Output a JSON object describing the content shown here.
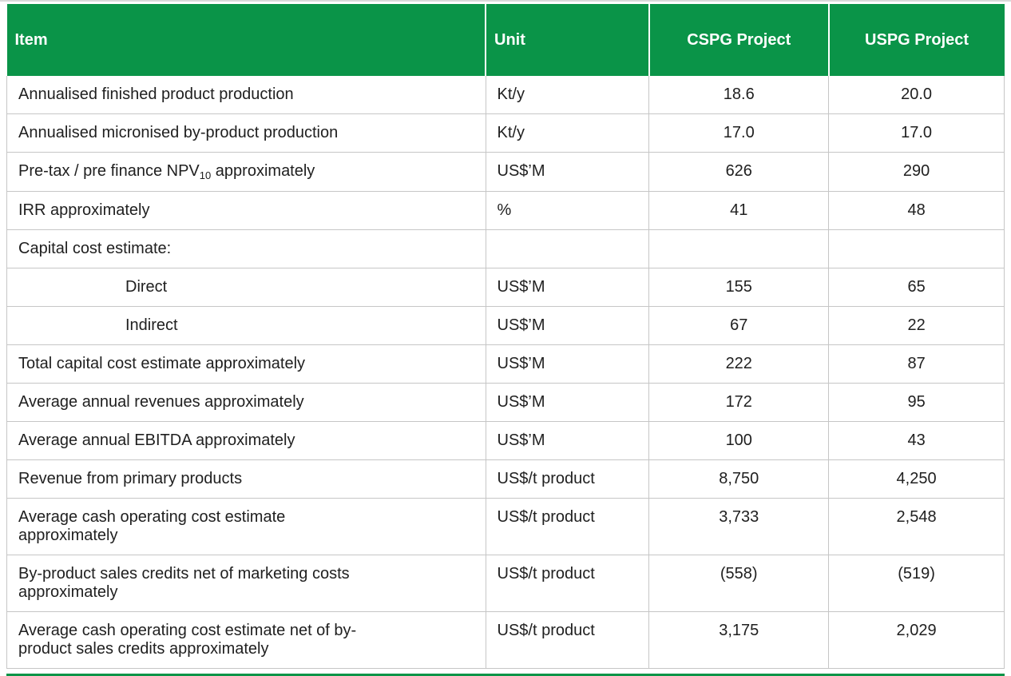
{
  "theme": {
    "header_bg": "#0a9448",
    "header_text": "#ffffff",
    "grid_line": "#c6c6c6",
    "body_text": "#202020"
  },
  "table": {
    "columns": [
      {
        "key": "item",
        "label": "Item"
      },
      {
        "key": "unit",
        "label": "Unit"
      },
      {
        "key": "cspg",
        "label": "CSPG Project"
      },
      {
        "key": "uspg",
        "label": "USPG Project"
      }
    ],
    "rows": [
      {
        "item": "Annualised finished product production",
        "unit": "Kt/y",
        "cspg": "18.6",
        "uspg": "20.0"
      },
      {
        "item": "Annualised micronised by-product production",
        "unit": "Kt/y",
        "cspg": "17.0",
        "uspg": "17.0"
      },
      {
        "item": "Pre-tax / pre finance NPV",
        "item_sub": "10",
        "item_suffix": " approximately",
        "unit": "US$’M",
        "cspg": "626",
        "uspg": "290"
      },
      {
        "item": "IRR approximately",
        "unit": "%",
        "cspg": "41",
        "uspg": "48"
      },
      {
        "item": "Capital cost estimate:",
        "unit": "",
        "cspg": "",
        "uspg": ""
      },
      {
        "item": "Direct",
        "indent": true,
        "unit": "US$’M",
        "cspg": "155",
        "uspg": "65"
      },
      {
        "item": "Indirect",
        "indent": true,
        "unit": "US$’M",
        "cspg": "67",
        "uspg": "22"
      },
      {
        "item": "Total capital cost estimate approximately",
        "unit": "US$’M",
        "cspg": "222",
        "uspg": "87"
      },
      {
        "item": "Average annual revenues approximately",
        "unit": "US$’M",
        "cspg": "172",
        "uspg": "95"
      },
      {
        "item": "Average annual EBITDA approximately",
        "unit": "US$’M",
        "cspg": "100",
        "uspg": "43"
      },
      {
        "item": "Revenue from primary products",
        "unit": "US$/t product",
        "cspg": "8,750",
        "uspg": "4,250"
      },
      {
        "item": "Average cash operating cost estimate\napproximately",
        "unit": "US$/t product",
        "cspg": "3,733",
        "uspg": "2,548"
      },
      {
        "item": "By-product sales credits net of marketing costs\napproximately",
        "unit": "US$/t product",
        "cspg": "(558)",
        "uspg": "(519)"
      },
      {
        "item": "Average cash operating cost estimate net of by-\nproduct sales credits approximately",
        "unit": "US$/t product",
        "cspg": "3,175",
        "uspg": "2,029"
      }
    ]
  }
}
